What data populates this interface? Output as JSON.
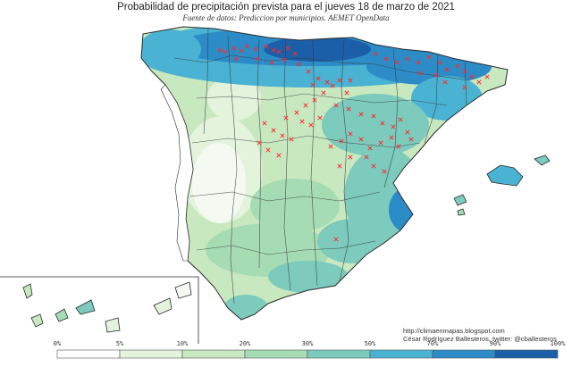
{
  "title": "Probabilidad de precipitación prevista para el jueves 18 de marzo de 2021",
  "subtitle": "Fuente de datos: Prediccion por municipios. AEMET OpenData",
  "credits": {
    "url": "http://climaenmapas.blogspot.com",
    "author": "César Rodríguez Ballesteros, twitter: @cballesteros"
  },
  "legend": {
    "labels": [
      "0%",
      "5%",
      "10%",
      "20%",
      "30%",
      "50%",
      "70%",
      "90%",
      "100%"
    ],
    "colors": [
      "#ffffff",
      "#e3f3dc",
      "#c8e8c0",
      "#a6dcb4",
      "#7ccbbd",
      "#4ab2d2",
      "#2b8cc8",
      "#1b5fa8"
    ]
  },
  "marker": {
    "symbol": "x",
    "color": "#ff2a2a"
  },
  "palette": {
    "outside": "#ffffff",
    "border": "#2a2a2a",
    "province_border": "#3a3a3a"
  }
}
